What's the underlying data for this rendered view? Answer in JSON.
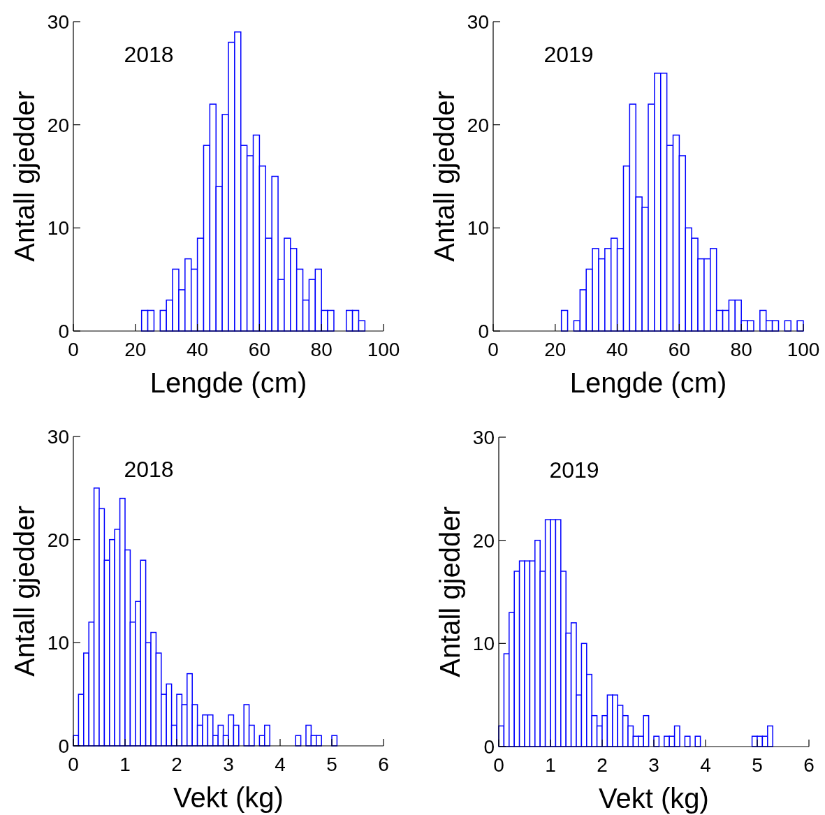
{
  "chart_data": [
    {
      "type": "histogram",
      "title": "2018",
      "xlabel": "Lengde (cm)",
      "ylabel": "Antall gjedder",
      "color": "#0000ff",
      "bins": [
        22,
        24,
        26,
        28,
        30,
        32,
        34,
        36,
        38,
        40,
        42,
        44,
        46,
        48,
        50,
        52,
        54,
        56,
        58,
        60,
        62,
        64,
        66,
        68,
        70,
        72,
        74,
        76,
        78,
        80,
        82,
        84,
        86,
        88,
        90,
        92,
        94
      ],
      "values": [
        2,
        2,
        0,
        2,
        3,
        6,
        4,
        7,
        6,
        9,
        18,
        22,
        14,
        21,
        28,
        29,
        18,
        17,
        19,
        16,
        9,
        15,
        5,
        9,
        8,
        6,
        3,
        5,
        6,
        2,
        2,
        0,
        0,
        2,
        2,
        1
      ],
      "xlim": [
        0,
        100
      ],
      "xticks": [
        0,
        20,
        40,
        60,
        80,
        100
      ],
      "ylim": [
        0,
        30
      ],
      "yticks": [
        0,
        10,
        20,
        30
      ]
    },
    {
      "type": "histogram",
      "title": "2019",
      "xlabel": "Lengde (cm)",
      "ylabel": "Antall gjedder",
      "color": "#0000ff",
      "bins": [
        22,
        24,
        26,
        28,
        30,
        32,
        34,
        36,
        38,
        40,
        42,
        44,
        46,
        48,
        50,
        52,
        54,
        56,
        58,
        60,
        62,
        64,
        66,
        68,
        70,
        72,
        74,
        76,
        78,
        80,
        82,
        84,
        86,
        88,
        90,
        92,
        94,
        96,
        98,
        100
      ],
      "values": [
        2,
        0,
        1,
        4,
        6,
        8,
        7,
        8,
        9,
        8,
        16,
        22,
        13,
        12,
        22,
        25,
        25,
        18,
        19,
        17,
        10,
        9,
        7,
        7,
        8,
        2,
        2,
        3,
        3,
        1,
        1,
        0,
        2,
        1,
        1,
        0,
        1,
        0,
        1
      ],
      "xlim": [
        0,
        100
      ],
      "xticks": [
        0,
        20,
        40,
        60,
        80,
        100
      ],
      "ylim": [
        0,
        30
      ],
      "yticks": [
        0,
        10,
        20,
        30
      ]
    },
    {
      "type": "histogram",
      "title": "2018",
      "xlabel": "Vekt (kg)",
      "ylabel": "Antall gjedder",
      "color": "#0000ff",
      "bins": [
        0,
        0.1,
        0.2,
        0.3,
        0.4,
        0.5,
        0.6,
        0.7,
        0.8,
        0.9,
        1,
        1.1,
        1.2,
        1.3,
        1.4,
        1.5,
        1.6,
        1.7,
        1.8,
        1.9,
        2,
        2.1,
        2.2,
        2.3,
        2.4,
        2.5,
        2.6,
        2.7,
        2.8,
        2.9,
        3,
        3.1,
        3.2,
        3.3,
        3.4,
        3.5,
        3.6,
        3.7,
        3.8,
        3.9,
        4,
        4.1,
        4.2,
        4.3,
        4.4,
        4.5,
        4.6,
        4.7,
        4.8,
        4.9,
        5,
        5.1
      ],
      "values": [
        1,
        5,
        9,
        12,
        25,
        23,
        18,
        20,
        21,
        24,
        19,
        12,
        14,
        18,
        10,
        11,
        9,
        5,
        6,
        2,
        5,
        4,
        7,
        4,
        2,
        3,
        3,
        1,
        2,
        1,
        3,
        2,
        0,
        4,
        2,
        0,
        1,
        2,
        0,
        0,
        0,
        0,
        0,
        1,
        0,
        2,
        1,
        1,
        0,
        0,
        1
      ],
      "xlim": [
        0,
        6
      ],
      "xticks": [
        0,
        1,
        2,
        3,
        4,
        5,
        6
      ],
      "ylim": [
        0,
        30
      ],
      "yticks": [
        0,
        10,
        20,
        30
      ]
    },
    {
      "type": "histogram",
      "title": "2019",
      "xlabel": "Vekt (kg)",
      "ylabel": "Antall gjedder",
      "color": "#0000ff",
      "bins": [
        0,
        0.1,
        0.2,
        0.3,
        0.4,
        0.5,
        0.6,
        0.7,
        0.8,
        0.9,
        1,
        1.1,
        1.2,
        1.3,
        1.4,
        1.5,
        1.6,
        1.7,
        1.8,
        1.9,
        2,
        2.1,
        2.2,
        2.3,
        2.4,
        2.5,
        2.6,
        2.7,
        2.8,
        2.9,
        3,
        3.1,
        3.2,
        3.3,
        3.4,
        3.5,
        3.6,
        3.7,
        3.8,
        3.9,
        4,
        4.1,
        4.2,
        4.3,
        4.4,
        4.5,
        4.6,
        4.7,
        4.8,
        4.9,
        5,
        5.1,
        5.2,
        5.3
      ],
      "values": [
        2,
        9,
        13,
        17,
        18,
        18,
        18,
        20,
        17,
        22,
        22,
        22,
        17,
        11,
        12,
        5,
        10,
        7,
        3,
        2,
        3,
        5,
        5,
        4,
        3,
        2,
        1,
        1,
        3,
        0,
        1,
        0,
        1,
        1,
        2,
        0,
        1,
        0,
        1,
        0,
        0,
        0,
        0,
        0,
        0,
        0,
        0,
        0,
        0,
        1,
        1,
        1,
        2
      ],
      "xlim": [
        0,
        6
      ],
      "xticks": [
        0,
        1,
        2,
        3,
        4,
        5,
        6
      ],
      "ylim": [
        0,
        30
      ],
      "yticks": [
        0,
        10,
        20,
        30
      ]
    }
  ]
}
